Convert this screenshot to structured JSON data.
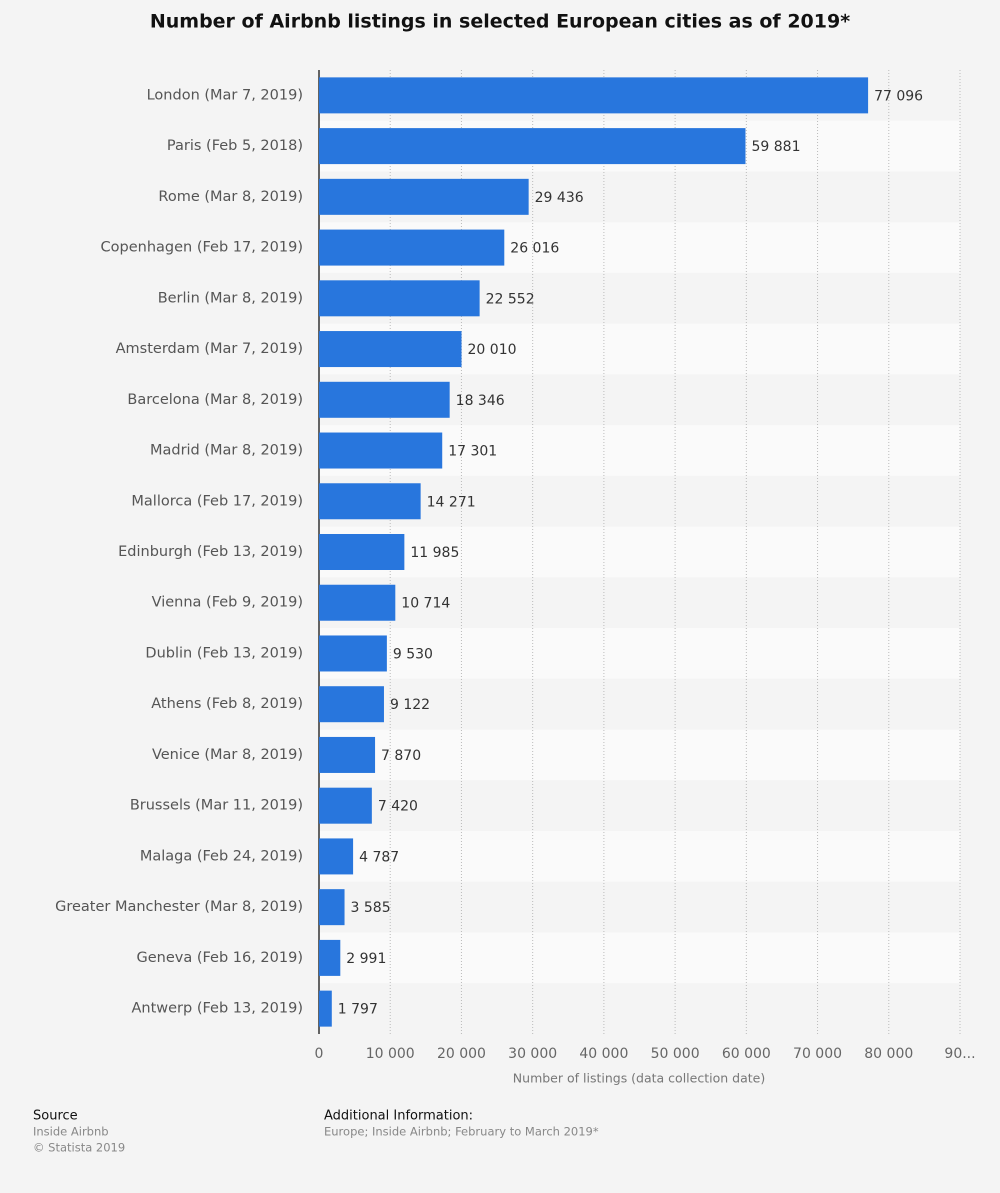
{
  "chart_data": {
    "type": "bar",
    "orientation": "horizontal",
    "title": "Number of Airbnb listings in selected European cities as of 2019*",
    "x_label": "Number of listings (data collection date)",
    "categories": [
      "London (Mar 7, 2019)",
      "Paris (Feb 5, 2018)",
      "Rome (Mar 8, 2019)",
      "Copenhagen (Feb 17, 2019)",
      "Berlin (Mar 8, 2019)",
      "Amsterdam (Mar 7, 2019)",
      "Barcelona (Mar 8, 2019)",
      "Madrid (Mar 8, 2019)",
      "Mallorca (Feb 17, 2019)",
      "Edinburgh (Feb 13, 2019)",
      "Vienna (Feb 9, 2019)",
      "Dublin (Feb 13, 2019)",
      "Athens (Feb 8, 2019)",
      "Venice (Mar 8, 2019)",
      "Brussels (Mar 11, 2019)",
      "Malaga (Feb 24, 2019)",
      "Greater Manchester (Mar 8, 2019)",
      "Geneva (Feb 16, 2019)",
      "Antwerp (Feb 13, 2019)"
    ],
    "values": [
      77096,
      59881,
      29436,
      26016,
      22552,
      20010,
      18346,
      17301,
      14271,
      11985,
      10714,
      9530,
      9122,
      7870,
      7420,
      4787,
      3585,
      2991,
      1797
    ],
    "value_labels": [
      "77 096",
      "59 881",
      "29 436",
      "26 016",
      "22 552",
      "20 010",
      "18 346",
      "17 301",
      "14 271",
      "11 985",
      "10 714",
      "9 530",
      "9 122",
      "7 870",
      "7 420",
      "4 787",
      "3 585",
      "2 991",
      "1 797"
    ],
    "color": "#2876dd",
    "xlim": [
      0,
      90000
    ],
    "xticks": [
      0,
      {
        "value": 10000,
        "label": "10 000"
      },
      {
        "value": 20000,
        "label": "20 000"
      },
      {
        "value": 30000,
        "label": "30 000"
      },
      {
        "value": 40000,
        "label": "40 000"
      },
      {
        "value": 50000,
        "label": "50 000"
      },
      {
        "value": 60000,
        "label": "60 000"
      },
      {
        "value": 70000,
        "label": "70 000"
      },
      {
        "value": 80000,
        "label": "80 000"
      },
      {
        "value": 90000,
        "label": "90..."
      }
    ],
    "grid": true
  },
  "footer": {
    "source_heading": "Source",
    "source_lines": [
      "Inside Airbnb",
      "© Statista 2019"
    ],
    "info_heading": "Additional Information:",
    "info_text": "Europe; Inside Airbnb; February to March 2019*"
  }
}
